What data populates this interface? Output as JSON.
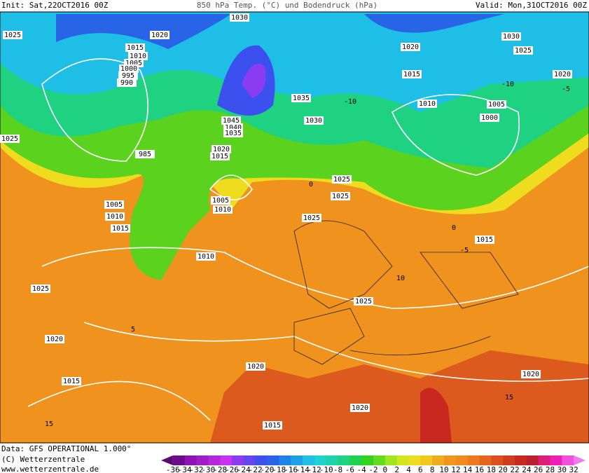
{
  "header": {
    "init": "Init: Sat,22OCT2016 00Z",
    "title": "850 hPa Temp. (°C) und Bodendruck (hPa)",
    "valid": "Valid: Mon,31OCT2016 00Z"
  },
  "footer": {
    "data": "Data: GFS OPERATIONAL 1.000°",
    "copyright": "(C) Wetterzentrale",
    "url": "www.wetterzentrale.de"
  },
  "isobar_labels": [
    "1025",
    "1020",
    "1030",
    "1015",
    "1010",
    "1005",
    "1000",
    "995",
    "990",
    "1025",
    "985",
    "1045",
    "1040",
    "1035",
    "1020",
    "1015",
    "1035",
    "1030",
    "1005",
    "1010",
    "1015",
    "1005",
    "1010",
    "1025",
    "1025",
    "1025",
    "1030",
    "1025",
    "1020",
    "1015",
    "1010",
    "1020",
    "1005",
    "1000",
    "1010",
    "1025",
    "1025",
    "1020",
    "1020",
    "1015",
    "1020",
    "1020",
    "1015",
    "1015"
  ],
  "temperature_labels": [
    "-10",
    "-5",
    "5",
    "15",
    "15",
    "10",
    "-5",
    "0",
    "-10",
    "0"
  ],
  "colorbar": {
    "labels": [
      -36,
      -34,
      -32,
      -30,
      -28,
      -26,
      -24,
      -22,
      -20,
      -18,
      -16,
      -14,
      -12,
      -10,
      -8,
      -6,
      -4,
      -2,
      0,
      2,
      4,
      6,
      8,
      10,
      12,
      14,
      16,
      18,
      20,
      22,
      24,
      26,
      28,
      30,
      32
    ],
    "colors": [
      "#5a0a6e",
      "#6e0a8c",
      "#8c14b4",
      "#a01ec8",
      "#b428dc",
      "#c832f0",
      "#8c3cf0",
      "#6446f0",
      "#3c50f0",
      "#2864e6",
      "#1e82e6",
      "#1ea0e6",
      "#1ebee6",
      "#1ed2d2",
      "#1ed2aa",
      "#1ed282",
      "#1ed250",
      "#32d21e",
      "#64dc1e",
      "#a0e61e",
      "#d2e61e",
      "#f0dc1e",
      "#f0c81e",
      "#f0aa1e",
      "#f0961e",
      "#f08c1e",
      "#f0781e",
      "#e6641e",
      "#dc501e",
      "#d23c1e",
      "#c8281e",
      "#be1e32",
      "#dc1e78",
      "#f01eb4",
      "#f050dc",
      "#f078f0"
    ]
  }
}
